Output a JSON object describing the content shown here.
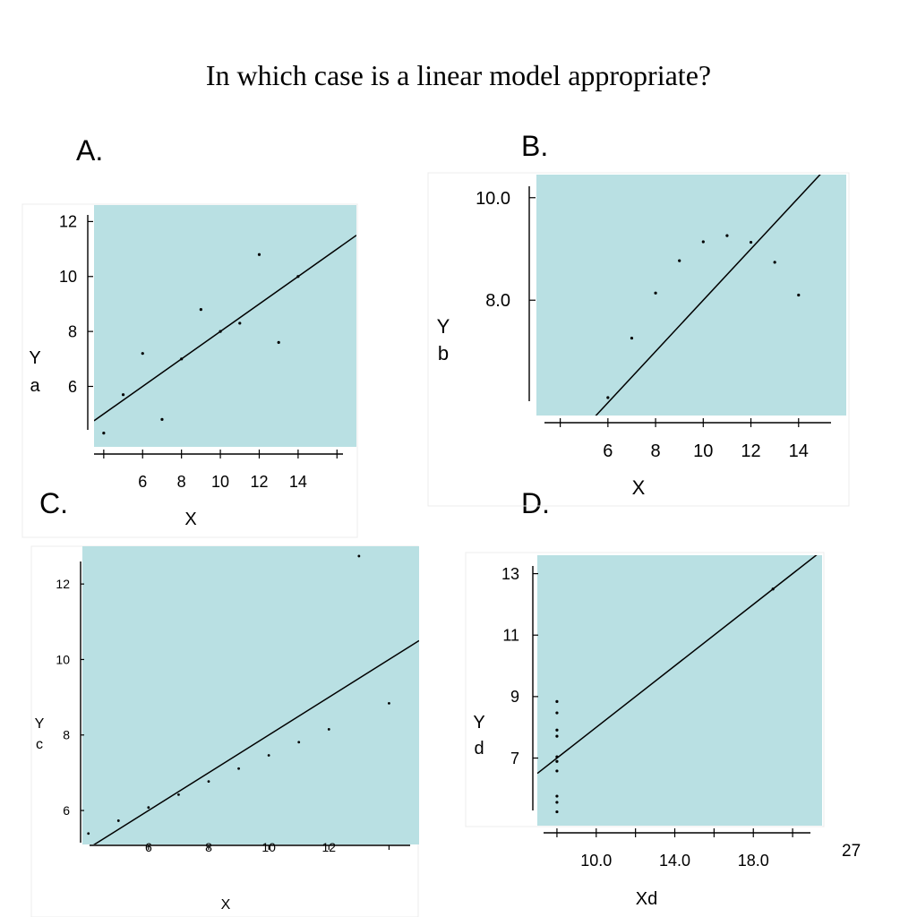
{
  "slide": {
    "title": "In which case is a linear model appropriate?",
    "page_number": "27",
    "panel_labels": [
      "A.",
      "B.",
      "C.",
      "D."
    ],
    "plot_bg_color": "#b9e0e3",
    "frame_color": "#ececec"
  },
  "chart_data": [
    {
      "type": "scatter",
      "title": "",
      "xlabel": "X",
      "ylabel": [
        "Y",
        "a"
      ],
      "xlim": [
        3.5,
        17
      ],
      "ylim": [
        3.8,
        12.6
      ],
      "x_ticks": [
        4,
        6,
        8,
        10,
        12,
        14,
        16
      ],
      "x_tick_labels": [
        "6",
        "8",
        "10",
        "12",
        "14"
      ],
      "y_ticks": [
        6,
        8,
        10,
        12
      ],
      "y_tick_labels": [
        "6",
        "8",
        "10",
        "12"
      ],
      "points": [
        {
          "x": 4,
          "y": 4.3
        },
        {
          "x": 5,
          "y": 5.7
        },
        {
          "x": 6,
          "y": 7.2
        },
        {
          "x": 7,
          "y": 4.8
        },
        {
          "x": 8,
          "y": 7.0
        },
        {
          "x": 9,
          "y": 8.8
        },
        {
          "x": 10,
          "y": 8.0
        },
        {
          "x": 11,
          "y": 8.3
        },
        {
          "x": 12,
          "y": 10.8
        },
        {
          "x": 13,
          "y": 7.6
        },
        {
          "x": 14,
          "y": 10.0
        }
      ],
      "fit_line": {
        "intercept": 3.0,
        "slope": 0.5
      }
    },
    {
      "type": "scatter",
      "title": "",
      "xlabel": "X",
      "ylabel": [
        "Y",
        "b"
      ],
      "xlim": [
        3.0,
        16.0
      ],
      "ylim": [
        5.75,
        10.45
      ],
      "x_ticks": [
        4,
        6,
        8,
        10,
        12,
        14,
        16
      ],
      "x_tick_labels": [
        "6",
        "8",
        "10",
        "12",
        "14"
      ],
      "y_ticks": [
        8.0,
        10.0
      ],
      "y_tick_labels": [
        "8.0",
        "10.0"
      ],
      "points": [
        {
          "x": 6,
          "y": 6.1
        },
        {
          "x": 7,
          "y": 7.26
        },
        {
          "x": 8,
          "y": 8.14
        },
        {
          "x": 9,
          "y": 8.77
        },
        {
          "x": 10,
          "y": 9.14
        },
        {
          "x": 11,
          "y": 9.26
        },
        {
          "x": 12,
          "y": 9.13
        },
        {
          "x": 13,
          "y": 8.74
        },
        {
          "x": 14,
          "y": 8.1
        }
      ],
      "fit_line": {
        "intercept": 3.0,
        "slope": 0.5
      }
    },
    {
      "type": "scatter",
      "title": "",
      "xlabel": "X",
      "ylabel": [
        "Y",
        "c"
      ],
      "xlim": [
        3.8,
        15.0
      ],
      "ylim": [
        5.1,
        13.0
      ],
      "x_ticks": [
        4,
        6,
        8,
        10,
        12,
        14
      ],
      "x_tick_labels": [
        "6",
        "8",
        "10",
        "12"
      ],
      "y_ticks": [
        6,
        8,
        10,
        12
      ],
      "y_tick_labels": [
        "6",
        "8",
        "10",
        "12"
      ],
      "points": [
        {
          "x": 4,
          "y": 5.39
        },
        {
          "x": 5,
          "y": 5.73
        },
        {
          "x": 6,
          "y": 6.08
        },
        {
          "x": 7,
          "y": 6.42
        },
        {
          "x": 8,
          "y": 6.77
        },
        {
          "x": 9,
          "y": 7.11
        },
        {
          "x": 10,
          "y": 7.46
        },
        {
          "x": 11,
          "y": 7.81
        },
        {
          "x": 12,
          "y": 8.15
        },
        {
          "x": 13,
          "y": 12.74
        },
        {
          "x": 14,
          "y": 8.84
        }
      ],
      "fit_line": {
        "intercept": 3.0,
        "slope": 0.5
      }
    },
    {
      "type": "scatter",
      "title": "",
      "xlabel": "Xd",
      "ylabel": [
        "Y",
        "d"
      ],
      "xlim": [
        7.0,
        21.5
      ],
      "ylim": [
        4.8,
        13.6
      ],
      "x_ticks": [
        8,
        10,
        12,
        14,
        16,
        18,
        20
      ],
      "x_tick_labels": [
        "10.0",
        "14.0",
        "18.0"
      ],
      "y_ticks": [
        7,
        9,
        11,
        13
      ],
      "y_tick_labels": [
        "7",
        "9",
        "11",
        "13"
      ],
      "points": [
        {
          "x": 8,
          "y": 5.25
        },
        {
          "x": 8,
          "y": 5.56
        },
        {
          "x": 8,
          "y": 5.76
        },
        {
          "x": 8,
          "y": 6.58
        },
        {
          "x": 8,
          "y": 6.89
        },
        {
          "x": 8,
          "y": 7.04
        },
        {
          "x": 8,
          "y": 7.71
        },
        {
          "x": 8,
          "y": 7.91
        },
        {
          "x": 8,
          "y": 8.47
        },
        {
          "x": 8,
          "y": 8.84
        },
        {
          "x": 19,
          "y": 12.5
        }
      ],
      "fit_line": {
        "intercept": 3.0,
        "slope": 0.5
      }
    }
  ]
}
